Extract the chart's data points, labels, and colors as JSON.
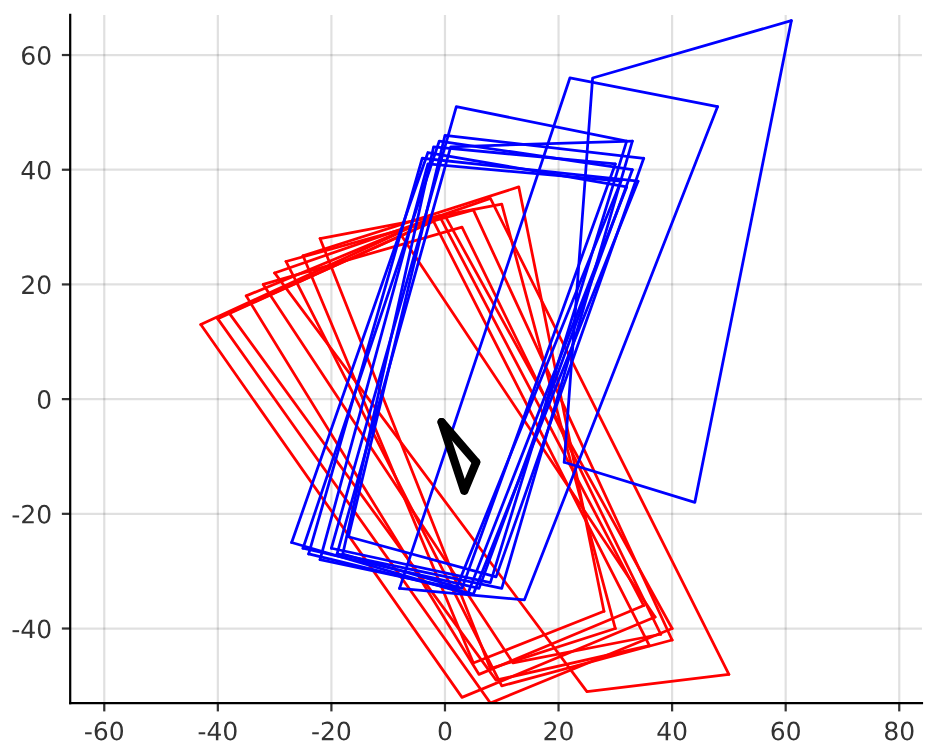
{
  "chart_data": {
    "type": "line",
    "xlim": [
      -66,
      84
    ],
    "ylim": [
      -53,
      67
    ],
    "xticks": [
      -60,
      -40,
      -20,
      0,
      20,
      40,
      60,
      80
    ],
    "yticks": [
      -40,
      -20,
      0,
      20,
      40,
      60
    ],
    "grid": true,
    "legend": false,
    "marker": "none",
    "line_style": "solid",
    "series": [
      {
        "color": "#ff0000",
        "x": [
          -43,
          -8,
          37
        ],
        "values": [
          13,
          29,
          -38
        ]
      },
      {
        "color": "#ff0000",
        "x": [
          -43,
          3,
          37
        ],
        "values": [
          13,
          -52,
          -38
        ]
      },
      {
        "color": "#ff0000",
        "x": [
          -40,
          0,
          40
        ],
        "values": [
          14,
          32,
          -40
        ]
      },
      {
        "color": "#ff0000",
        "x": [
          -40,
          8,
          40
        ],
        "values": [
          14,
          -53,
          -40
        ]
      },
      {
        "color": "#ff0000",
        "x": [
          -30,
          8,
          50
        ],
        "values": [
          22,
          35,
          -48
        ]
      },
      {
        "color": "#ff0000",
        "x": [
          -30,
          25,
          50
        ],
        "values": [
          22,
          -51,
          -48
        ]
      },
      {
        "color": "#ff0000",
        "x": [
          -35,
          -1,
          35
        ],
        "values": [
          18,
          32,
          -36
        ]
      },
      {
        "color": "#ff0000",
        "x": [
          -35,
          6,
          35
        ],
        "values": [
          18,
          -48,
          -36
        ]
      },
      {
        "color": "#ff0000",
        "x": [
          -28,
          5,
          40
        ],
        "values": [
          24,
          33,
          -42
        ]
      },
      {
        "color": "#ff0000",
        "x": [
          -28,
          10,
          40
        ],
        "values": [
          24,
          -50,
          -42
        ]
      },
      {
        "color": "#ff0000",
        "x": [
          -25,
          13,
          28
        ],
        "values": [
          25,
          37,
          -37
        ]
      },
      {
        "color": "#ff0000",
        "x": [
          -25,
          5,
          28
        ],
        "values": [
          25,
          -46,
          -37
        ]
      },
      {
        "color": "#ff0000",
        "x": [
          -32,
          3,
          38
        ],
        "values": [
          20,
          30,
          -41
        ]
      },
      {
        "color": "#ff0000",
        "x": [
          -32,
          12,
          38
        ],
        "values": [
          20,
          -46,
          -41
        ]
      },
      {
        "color": "#ff0000",
        "x": [
          -22,
          10,
          30
        ],
        "values": [
          28,
          34,
          -40
        ]
      },
      {
        "color": "#ff0000",
        "x": [
          -22,
          8,
          30
        ],
        "values": [
          28,
          -47,
          -40
        ]
      },
      {
        "color": "#ff0000",
        "x": [
          -38,
          -2,
          36
        ],
        "values": [
          15,
          31,
          -43
        ]
      },
      {
        "color": "#ff0000",
        "x": [
          -38,
          9,
          36
        ],
        "values": [
          15,
          -49,
          -43
        ]
      },
      {
        "color": "#0000ff",
        "x": [
          -27,
          -3,
          32
        ],
        "values": [
          -25,
          43,
          37
        ]
      },
      {
        "color": "#0000ff",
        "x": [
          -27,
          4,
          32
        ],
        "values": [
          -25,
          -34,
          37
        ]
      },
      {
        "color": "#0000ff",
        "x": [
          -25,
          -1,
          33
        ],
        "values": [
          -26,
          45,
          40
        ]
      },
      {
        "color": "#0000ff",
        "x": [
          -25,
          6,
          33
        ],
        "values": [
          -26,
          -33,
          40
        ]
      },
      {
        "color": "#0000ff",
        "x": [
          -20,
          2,
          32
        ],
        "values": [
          -26,
          51,
          45
        ]
      },
      {
        "color": "#0000ff",
        "x": [
          -20,
          8,
          32
        ],
        "values": [
          -26,
          -32,
          45
        ]
      },
      {
        "color": "#0000ff",
        "x": [
          -24,
          -4,
          34
        ],
        "values": [
          -27,
          42,
          38
        ]
      },
      {
        "color": "#0000ff",
        "x": [
          -24,
          5,
          34
        ],
        "values": [
          -27,
          -34,
          38
        ]
      },
      {
        "color": "#0000ff",
        "x": [
          -18,
          -2,
          30
        ],
        "values": [
          -27,
          44,
          41
        ]
      },
      {
        "color": "#0000ff",
        "x": [
          -18,
          3,
          30
        ],
        "values": [
          -27,
          -33,
          41
        ]
      },
      {
        "color": "#0000ff",
        "x": [
          -17,
          0,
          35
        ],
        "values": [
          -24,
          46,
          42
        ]
      },
      {
        "color": "#0000ff",
        "x": [
          -17,
          9,
          35
        ],
        "values": [
          -24,
          -31,
          42
        ]
      },
      {
        "color": "#0000ff",
        "x": [
          -22,
          -3,
          31
        ],
        "values": [
          -28,
          41,
          38
        ]
      },
      {
        "color": "#0000ff",
        "x": [
          -22,
          2,
          31
        ],
        "values": [
          -28,
          -33,
          38
        ]
      },
      {
        "color": "#0000ff",
        "x": [
          -19,
          1,
          33
        ],
        "values": [
          -27,
          44,
          45
        ]
      },
      {
        "color": "#0000ff",
        "x": [
          -19,
          10,
          33
        ],
        "values": [
          -27,
          -33,
          45
        ]
      },
      {
        "color": "#0000ff",
        "x": [
          21,
          26,
          61
        ],
        "values": [
          -11,
          56,
          66
        ]
      },
      {
        "color": "#0000ff",
        "x": [
          21,
          44,
          61
        ],
        "values": [
          -11,
          -18,
          66
        ]
      },
      {
        "color": "#0000ff",
        "x": [
          -8,
          22,
          48
        ],
        "values": [
          -33,
          56,
          51
        ]
      },
      {
        "color": "#0000ff",
        "x": [
          -8,
          14,
          48
        ],
        "values": [
          -33,
          -35,
          51
        ]
      },
      {
        "color": "#000000",
        "x": [
          -0.6,
          5.5
        ],
        "values": [
          -4,
          -11
        ]
      },
      {
        "color": "#000000",
        "x": [
          -0.6,
          3.4,
          5.5
        ],
        "values": [
          -4,
          -16,
          -11
        ]
      }
    ]
  }
}
